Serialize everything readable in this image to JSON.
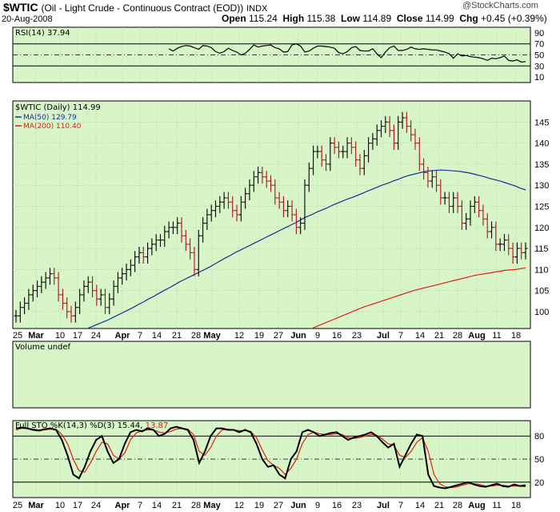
{
  "header": {
    "symbol": "$WTIC",
    "description": "(Oil - Light Crude - Continuous Contract (EOD))",
    "exchange": "INDX",
    "date": "20-Aug-2008",
    "open_label": "Open",
    "open": "115.24",
    "high_label": "High",
    "high": "115.38",
    "low_label": "Low",
    "low": "114.89",
    "close_label": "Close",
    "close": "114.99",
    "chg_label": "Chg",
    "chg": "+0.45 (+0.39%)",
    "watermark": "@StockCharts.com"
  },
  "colors": {
    "background": "#d8f5c8",
    "price_up": "#000000",
    "price_down": "#b0101c",
    "ma50": "#1a2a9a",
    "ma200": "#e02010",
    "grid": "#000000"
  },
  "chart_data": [
    {
      "type": "line",
      "panel": "rsi",
      "label": "RSI(14) 37.94",
      "ylim": [
        0,
        100
      ],
      "yticks": [
        10,
        30,
        50,
        70,
        90
      ],
      "reference_lines": [
        30,
        50,
        70
      ],
      "values": [
        61,
        57,
        62,
        65,
        67,
        66,
        63,
        60,
        67,
        66,
        63,
        56,
        53,
        56,
        62,
        58,
        55,
        50,
        53,
        60,
        68,
        64,
        66,
        67,
        68,
        63,
        61,
        55,
        56,
        68,
        70,
        66,
        55,
        57,
        62,
        66,
        66,
        65,
        64,
        62,
        54,
        52,
        56,
        63,
        65,
        58,
        57,
        57,
        61,
        52,
        45,
        55,
        63,
        66,
        58,
        58,
        60,
        64,
        61,
        60,
        61,
        60,
        59,
        59,
        57,
        55,
        52,
        44,
        52,
        48,
        49,
        47,
        46,
        45,
        43,
        40,
        44,
        43,
        45,
        48,
        40,
        39,
        41,
        37,
        38
      ],
      "x_tick_labels": [
        "25",
        "Mar",
        "10",
        "17",
        "24",
        "Apr",
        "7",
        "14",
        "21",
        "28",
        "May",
        "12",
        "19",
        "27",
        "Jun",
        "9",
        "16",
        "23",
        "Jul",
        "7",
        "14",
        "21",
        "28",
        "Aug",
        "11",
        "18"
      ]
    },
    {
      "type": "ohlc",
      "panel": "price",
      "label": "$WTIC (Daily) 114.99",
      "legend": [
        {
          "name": "MA(50) 129.79",
          "color": "#1a2a9a"
        },
        {
          "name": "MA(200) 110.40",
          "color": "#e02010"
        }
      ],
      "ylim": [
        96,
        150
      ],
      "yticks": [
        100,
        105,
        110,
        115,
        120,
        125,
        130,
        135,
        140,
        145
      ],
      "x_tick_labels": [
        "25",
        "Mar",
        "10",
        "17",
        "24",
        "Apr",
        "7",
        "14",
        "21",
        "28",
        "May",
        "12",
        "19",
        "27",
        "Jun",
        "9",
        "16",
        "23",
        "Jul",
        "7",
        "14",
        "21",
        "28",
        "Aug",
        "11",
        "18"
      ],
      "close": [
        99,
        101,
        102,
        104,
        105,
        106,
        107,
        108,
        109,
        108,
        104,
        102,
        100,
        99,
        101,
        104,
        106,
        107,
        105,
        103,
        104,
        101,
        103,
        106,
        108,
        109,
        110,
        111,
        113,
        114,
        113,
        115,
        116,
        117,
        117,
        119,
        120,
        120,
        121,
        118,
        116,
        114,
        110,
        118,
        121,
        123,
        124,
        125,
        126,
        127,
        126,
        124,
        123,
        126,
        128,
        130,
        132,
        133,
        132,
        131,
        130,
        127,
        126,
        124,
        125,
        123,
        120,
        121,
        130,
        134,
        138,
        138,
        136,
        135,
        140,
        139,
        138,
        138,
        140,
        139,
        136,
        134,
        137,
        140,
        141,
        143,
        144,
        145,
        143,
        140,
        145,
        146,
        144,
        142,
        140,
        135,
        133,
        131,
        132,
        130,
        127,
        127,
        125,
        127,
        125,
        121,
        122,
        125,
        126,
        124,
        122,
        119,
        120,
        116,
        116,
        117,
        115,
        113,
        115,
        114,
        115
      ],
      "ma50": [
        null,
        null,
        null,
        null,
        null,
        null,
        null,
        null,
        null,
        null,
        null,
        null,
        null,
        null,
        96,
        96.5,
        97,
        97.5,
        98,
        98.6,
        99.2,
        99.8,
        100.4,
        101,
        101.7,
        102.3,
        103,
        103.6,
        104.3,
        105,
        105.6,
        106.3,
        107,
        107.6,
        108.2,
        108.8,
        109.4,
        110,
        110.6,
        111.3,
        112,
        112.7,
        113.3,
        114,
        114.6,
        115.2,
        115.8,
        116.4,
        117,
        117.6,
        118.2,
        118.8,
        119.4,
        120,
        120.6,
        121.2,
        121.9,
        122.5,
        123,
        123.6,
        124.1,
        124.6,
        125.2,
        125.7,
        126.2,
        126.7,
        127.1,
        127.6,
        128.1,
        128.6,
        129.1,
        129.6,
        130.1,
        130.5,
        131,
        131.4,
        131.9,
        132.3,
        132.6,
        132.9,
        133.2,
        133.4,
        133.5,
        133.6,
        133.6,
        133.5,
        133.4,
        133.3,
        133.1,
        132.9,
        132.6,
        132.3,
        132,
        131.6,
        131.3,
        131,
        130.6,
        130.2,
        129.8,
        129.3,
        128.9
      ],
      "ma200": [
        null,
        null,
        null,
        null,
        null,
        null,
        null,
        null,
        null,
        null,
        null,
        null,
        null,
        null,
        null,
        null,
        null,
        null,
        null,
        null,
        null,
        null,
        null,
        null,
        null,
        null,
        null,
        null,
        null,
        null,
        null,
        null,
        null,
        null,
        null,
        null,
        null,
        null,
        null,
        null,
        null,
        null,
        null,
        null,
        null,
        null,
        null,
        null,
        null,
        null,
        null,
        null,
        null,
        null,
        null,
        null,
        null,
        null,
        96,
        96.5,
        97,
        97.5,
        98,
        98.5,
        99,
        99.5,
        100,
        100.5,
        101,
        101.4,
        101.8,
        102.2,
        102.6,
        103,
        103.4,
        103.8,
        104.2,
        104.6,
        105,
        105.3,
        105.6,
        105.9,
        106.2,
        106.5,
        106.8,
        107.1,
        107.4,
        107.7,
        108,
        108.3,
        108.6,
        108.8,
        109,
        109.2,
        109.4,
        109.6,
        109.8,
        109.9,
        110,
        110.2,
        110.4
      ]
    },
    {
      "type": "line",
      "panel": "volume",
      "label": "Volume undef",
      "values": []
    },
    {
      "type": "line",
      "panel": "stochastic",
      "label": "Full STO %K(14,3) %D(3) 15.44, 13.87",
      "ylim": [
        0,
        100
      ],
      "yticks": [
        20,
        50,
        80
      ],
      "reference_lines": [
        20,
        50,
        80
      ],
      "series": [
        {
          "name": "%K",
          "color": "#000000",
          "values": [
            90,
            91,
            90,
            88,
            87,
            89,
            90,
            88,
            75,
            55,
            30,
            25,
            40,
            60,
            75,
            80,
            60,
            45,
            50,
            70,
            85,
            88,
            86,
            90,
            88,
            80,
            83,
            90,
            92,
            90,
            88,
            75,
            45,
            60,
            80,
            90,
            90,
            88,
            88,
            85,
            88,
            85,
            70,
            50,
            40,
            42,
            30,
            25,
            50,
            60,
            85,
            88,
            85,
            80,
            82,
            84,
            85,
            80,
            75,
            78,
            80,
            82,
            85,
            80,
            72,
            65,
            70,
            40,
            55,
            70,
            82,
            80,
            30,
            15,
            13,
            12,
            14,
            16,
            18,
            20,
            17,
            15,
            14,
            16,
            18,
            15,
            14,
            17,
            15,
            16
          ]
        },
        {
          "name": "%D",
          "color": "#e02010",
          "values": [
            88,
            90,
            90,
            89,
            88,
            88,
            89,
            89,
            82,
            70,
            50,
            35,
            33,
            45,
            60,
            72,
            70,
            55,
            50,
            58,
            75,
            84,
            87,
            88,
            88,
            85,
            84,
            86,
            89,
            90,
            89,
            82,
            60,
            55,
            65,
            80,
            88,
            89,
            88,
            87,
            87,
            86,
            78,
            62,
            48,
            42,
            38,
            30,
            38,
            50,
            70,
            82,
            85,
            83,
            82,
            82,
            83,
            82,
            78,
            77,
            78,
            80,
            82,
            81,
            76,
            70,
            68,
            55,
            52,
            60,
            72,
            78,
            60,
            30,
            18,
            14,
            13,
            14,
            16,
            18,
            18,
            17,
            15,
            15,
            16,
            16,
            15,
            15,
            15,
            14
          ]
        }
      ]
    }
  ]
}
